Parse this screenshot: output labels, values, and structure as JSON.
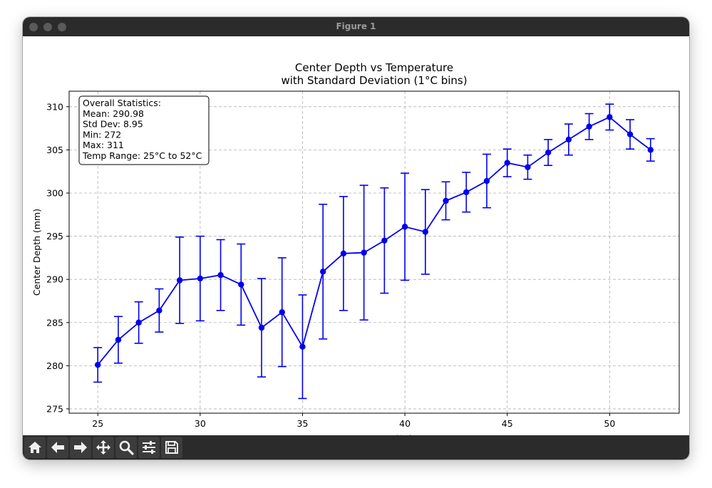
{
  "window": {
    "title": "Figure 1"
  },
  "toolbar": {
    "buttons": [
      {
        "name": "home-icon"
      },
      {
        "name": "back-arrow-icon"
      },
      {
        "name": "forward-arrow-icon"
      },
      {
        "name": "pan-icon"
      },
      {
        "name": "zoom-icon"
      },
      {
        "name": "configure-subplots-icon"
      },
      {
        "name": "save-icon"
      }
    ]
  },
  "colors": {
    "series": "#0000ee",
    "grid": "#b0b0b0"
  },
  "chart_data": {
    "type": "line",
    "title": "Center Depth vs Temperature",
    "subtitle": "with Standard Deviation (1°C bins)",
    "xlabel": "Temperature (°C)",
    "ylabel": "Center Depth (mm)",
    "xlim": [
      23.6,
      53.4
    ],
    "ylim": [
      274.5,
      311.8
    ],
    "xticks": [
      25,
      30,
      35,
      40,
      45,
      50
    ],
    "yticks": [
      275,
      280,
      285,
      290,
      295,
      300,
      305,
      310
    ],
    "grid": true,
    "error_bars": true,
    "x": [
      25,
      26,
      27,
      28,
      29,
      30,
      31,
      32,
      33,
      34,
      35,
      36,
      37,
      38,
      39,
      40,
      41,
      42,
      43,
      44,
      45,
      46,
      47,
      48,
      49,
      50,
      51,
      52
    ],
    "y": [
      280.1,
      283.0,
      285.0,
      286.4,
      289.9,
      290.1,
      290.5,
      289.4,
      284.4,
      286.2,
      282.2,
      290.9,
      293.0,
      293.1,
      294.5,
      296.1,
      295.5,
      299.1,
      300.1,
      301.4,
      303.5,
      303.0,
      304.7,
      306.2,
      307.7,
      308.8,
      306.8,
      305.0
    ],
    "yerr": [
      2.0,
      2.7,
      2.4,
      2.5,
      5.0,
      4.9,
      4.1,
      4.7,
      5.7,
      6.3,
      6.0,
      7.8,
      6.6,
      7.8,
      6.1,
      6.2,
      4.9,
      2.2,
      2.3,
      3.1,
      1.6,
      1.4,
      1.5,
      1.8,
      1.5,
      1.5,
      1.7,
      1.3
    ],
    "stats_box": {
      "location": "upper-left",
      "lines": [
        "Overall Statistics:",
        "Mean: 290.98",
        "Std Dev: 8.95",
        "Min: 272",
        "Max: 311",
        "Temp Range: 25°C to 52°C"
      ]
    }
  }
}
